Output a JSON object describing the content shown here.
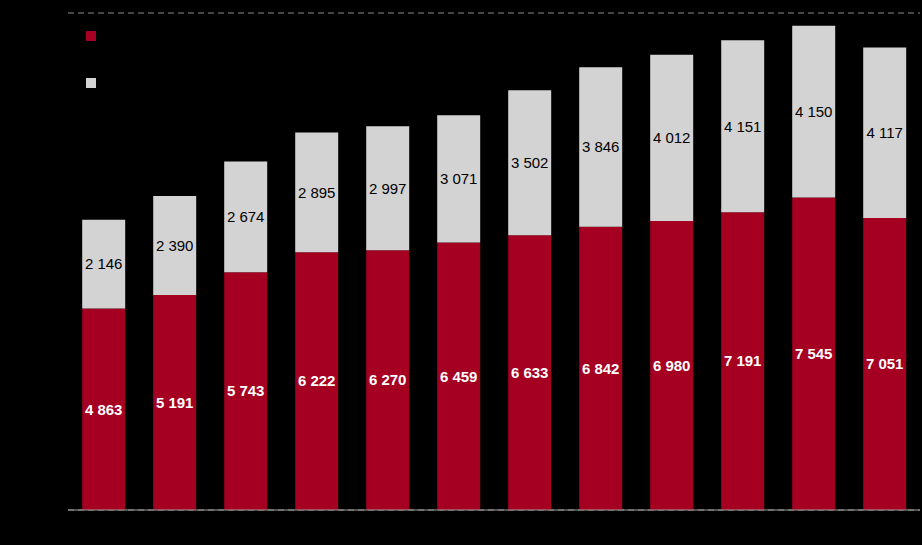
{
  "chart_data": {
    "type": "bar",
    "stacked": true,
    "data_labels": true,
    "grid": true,
    "tick_labels": false,
    "legend": "top-left",
    "categories": [
      null,
      null,
      null,
      null,
      null,
      null,
      null,
      null,
      null,
      null,
      null,
      null
    ],
    "ylim": [
      0,
      12000
    ],
    "yticks": [
      0,
      2000,
      4000,
      6000,
      8000,
      10000,
      12000
    ],
    "series": [
      {
        "color": "#a50021",
        "values": [
          4863,
          5191,
          5743,
          6222,
          6270,
          6459,
          6633,
          6842,
          6980,
          7191,
          7545,
          7051
        ],
        "value_labels": [
          "4 863",
          "5 191",
          "5 743",
          "6 222",
          "6 270",
          "6 459",
          "6 633",
          "6 842",
          "6 980",
          "7 191",
          "7 545",
          "7 051"
        ]
      },
      {
        "color": "#d3d3d3",
        "values": [
          2146,
          2390,
          2674,
          2895,
          2997,
          3071,
          3502,
          3846,
          4012,
          4151,
          4150,
          4117
        ],
        "value_labels": [
          "2 146",
          "2 390",
          "2 674",
          "2 895",
          "2 997",
          "3 071",
          "3 502",
          "3 846",
          "4 012",
          "4 151",
          "4 150",
          "4 117"
        ]
      }
    ]
  }
}
